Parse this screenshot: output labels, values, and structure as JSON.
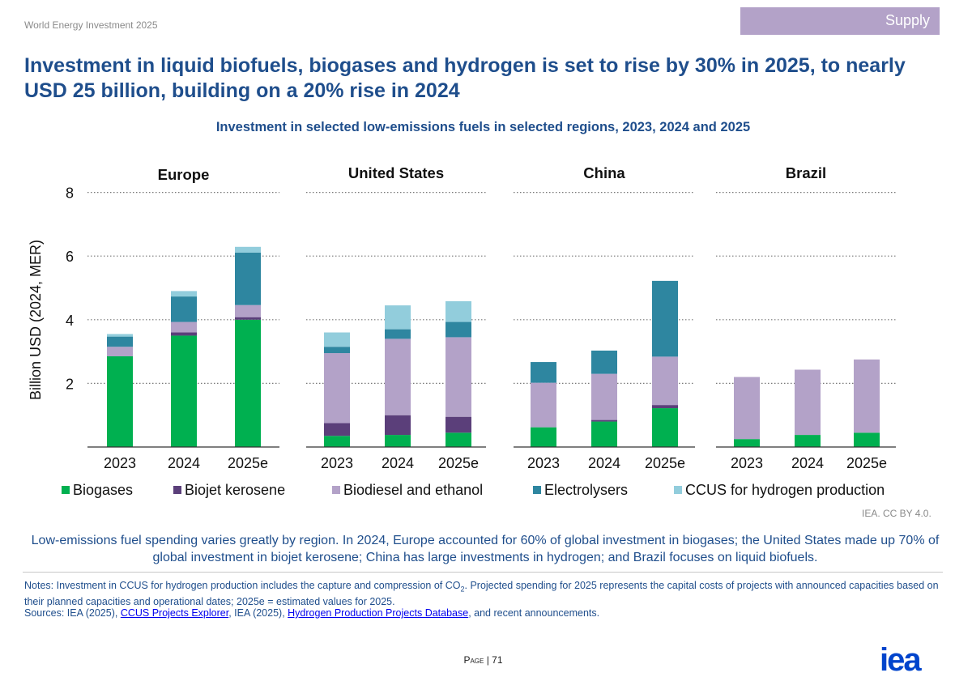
{
  "header": {
    "doc_title": "World Energy Investment 2025",
    "section": "Supply",
    "headline": "Investment in liquid biofuels, biogases and hydrogen is set to rise by 30% in 2025, to nearly USD 25 billion, building on a 20% rise in 2024"
  },
  "chart_data": {
    "type": "bar",
    "stacked": true,
    "title": "Investment in selected low-emissions fuels in selected regions, 2023, 2024 and 2025",
    "ylabel": "Billion USD (2024, MER)",
    "ylim": [
      0,
      8
    ],
    "yticks": [
      2,
      4,
      6,
      8
    ],
    "grid": true,
    "legend_position": "bottom",
    "categories": [
      "2023",
      "2024",
      "2025e"
    ],
    "series_names": [
      "Biogases",
      "Biojet kerosene",
      "Biodiesel and ethanol",
      "Electrolysers",
      "CCUS for hydrogen production"
    ],
    "colors": [
      "#00b050",
      "#5b3f7a",
      "#b3a2c8",
      "#2e86a0",
      "#92cddc"
    ],
    "panels": [
      {
        "name": "Europe",
        "values": [
          [
            2.85,
            0.0,
            0.3,
            0.32,
            0.08
          ],
          [
            3.5,
            0.1,
            0.33,
            0.8,
            0.17
          ],
          [
            4.0,
            0.08,
            0.38,
            1.65,
            0.18
          ]
        ]
      },
      {
        "name": "United States",
        "values": [
          [
            0.35,
            0.4,
            2.2,
            0.2,
            0.45
          ],
          [
            0.38,
            0.62,
            2.4,
            0.3,
            0.75
          ],
          [
            0.45,
            0.5,
            2.5,
            0.48,
            0.65
          ]
        ]
      },
      {
        "name": "China",
        "values": [
          [
            0.62,
            0.0,
            1.4,
            0.65,
            0.0
          ],
          [
            0.8,
            0.05,
            1.45,
            0.73,
            0.0
          ],
          [
            1.22,
            0.1,
            1.52,
            2.38,
            0.0
          ]
        ]
      },
      {
        "name": "Brazil",
        "values": [
          [
            0.25,
            0.0,
            1.95,
            0.0,
            0.0
          ],
          [
            0.38,
            0.0,
            2.05,
            0.0,
            0.0
          ],
          [
            0.45,
            0.0,
            2.3,
            0.0,
            0.0
          ]
        ]
      }
    ]
  },
  "credit": "IEA. CC BY 4.0.",
  "caption": "Low-emissions fuel spending varies greatly by region. In 2024, Europe accounted for 60% of global investment in biogases; the United States made up 70% of global investment in biojet kerosene; China has large investments in hydrogen; and Brazil focuses on liquid biofuels.",
  "notes": {
    "prefix": "Notes: Investment in CCUS for hydrogen production includes the capture and compression of CO",
    "sub": "2",
    "suffix": ". Projected spending for 2025 represents the capital costs of projects with announced capacities based on their planned capacities and operational dates; 2025e = estimated values for 2025."
  },
  "sources": {
    "prefix": "Sources: IEA (2025), ",
    "link1": "CCUS Projects Explorer",
    "mid": ", IEA (2025), ",
    "link2": "Hydrogen Production Projects Database",
    "suffix": ", and recent announcements."
  },
  "footer": {
    "page_label": "Page",
    "separator": " | ",
    "page_number": "71",
    "logo_text": "iea"
  }
}
